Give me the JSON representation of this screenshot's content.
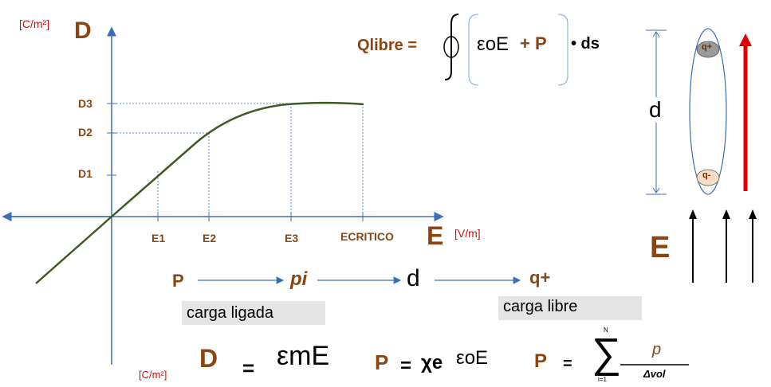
{
  "graph": {
    "y_unit": "[C/m²]",
    "y_axis_label": "D",
    "x_unit": "[V/m]",
    "x_axis_label": "E",
    "d_ticks": [
      "D3",
      "D2",
      "D1"
    ],
    "e_ticks": [
      "E1",
      "E2",
      "E3",
      "ECRITICO"
    ]
  },
  "equation_q": {
    "lhs": "Qlibre =",
    "eps": "εoE",
    "plus_p": "+ P",
    "ds": "• ds"
  },
  "dipole": {
    "d_label": "d",
    "q_plus": "q+",
    "q_minus": "q-",
    "e_label": "E"
  },
  "chain": {
    "p": "P",
    "pi": "pi",
    "d": "d",
    "q_plus": "q+"
  },
  "boxes": {
    "carga_ligada": "carga ligada",
    "carga_libre": "carga libre"
  },
  "bottom": {
    "unit": "[C/m²]",
    "d_eq": "D",
    "equals1": "=",
    "em_e": "εmE",
    "p_eq": "P",
    "equals2": "=",
    "chi": "χe",
    "eps_e": "εoE",
    "p_sum": "P",
    "equals3": "=",
    "sum_top": "N",
    "sum_bottom": "i=1",
    "frac_num": "p",
    "frac_den": "Δvol"
  }
}
